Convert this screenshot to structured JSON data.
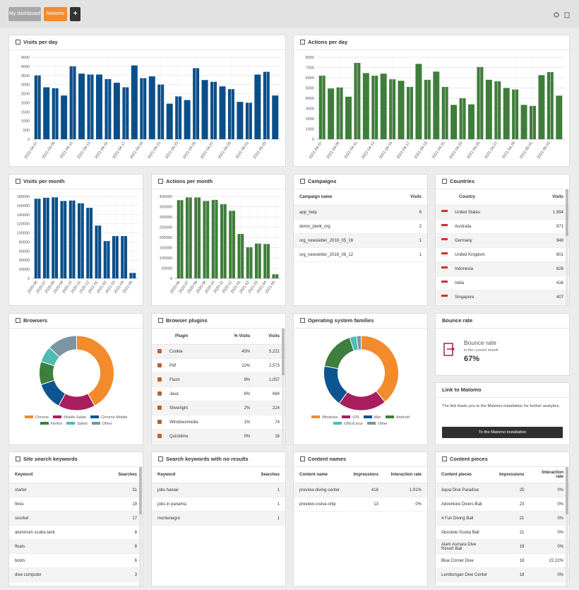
{
  "header": {
    "tabs": [
      "My dashboard",
      "Matomo"
    ],
    "add_button": "+"
  },
  "chart_data": [
    {
      "type": "bar",
      "title": "Visits per day",
      "color": "#0b4f8a",
      "categories": [
        "2021-04-07",
        null,
        "2021-04-09",
        null,
        "2021-04-11",
        null,
        "2021-04-13",
        null,
        "2021-04-15",
        null,
        "2021-04-17",
        null,
        "2021-04-19",
        null,
        "2021-04-21",
        null,
        "2021-04-23",
        null,
        "2021-04-25",
        null,
        "2021-04-27",
        null,
        "2021-04-29",
        null,
        "2021-05-01",
        null,
        "2021-05-03",
        null
      ],
      "values": [
        3500,
        2850,
        2800,
        2400,
        4000,
        3600,
        3550,
        3550,
        3300,
        3100,
        2850,
        4050,
        3350,
        3450,
        3000,
        1950,
        2350,
        2150,
        3900,
        3250,
        3150,
        2900,
        2750,
        2050,
        2000,
        3550,
        3700,
        2400
      ],
      "ylim": [
        0,
        4500
      ],
      "yticks": [
        0,
        500,
        1000,
        1500,
        2000,
        2500,
        3000,
        3500,
        4000,
        4500
      ],
      "grid": true
    },
    {
      "type": "bar",
      "title": "Actions per day",
      "color": "#3f7d3b",
      "categories": [
        "2021-04-07",
        null,
        "2021-04-09",
        null,
        "2021-04-11",
        null,
        "2021-04-13",
        null,
        "2021-04-15",
        null,
        "2021-04-17",
        null,
        "2021-04-19",
        null,
        "2021-04-21",
        null,
        "2021-04-23",
        null,
        "2021-04-25",
        null,
        "2021-04-27",
        null,
        "2021-04-29",
        null,
        "2021-05-01",
        null,
        "2021-05-03",
        null
      ],
      "values": [
        6200,
        4950,
        5050,
        4150,
        7450,
        6450,
        6200,
        6400,
        5850,
        5700,
        5100,
        7350,
        5800,
        6600,
        5100,
        3350,
        4000,
        3400,
        7050,
        5800,
        5650,
        5000,
        4850,
        3350,
        3250,
        6250,
        6550,
        4250
      ],
      "ylim": [
        0,
        8000
      ],
      "yticks": [
        0,
        1000,
        2000,
        3000,
        4000,
        5000,
        6000,
        7000,
        8000
      ],
      "grid": true
    },
    {
      "type": "bar",
      "title": "Visits per month",
      "color": "#0b4f8a",
      "categories": [
        "2020-06",
        "2020-07",
        "2020-08",
        "2020-09",
        "2020-10",
        "2020-11",
        "2020-12",
        "2021-01",
        "2021-02",
        "2021-03",
        "2021-04",
        "2021-05"
      ],
      "values": [
        175000,
        177000,
        178000,
        170000,
        171000,
        165000,
        155000,
        116000,
        82000,
        93000,
        93000,
        12000
      ],
      "ylim": [
        0,
        180000
      ],
      "yticks": [
        0,
        20000,
        40000,
        60000,
        80000,
        100000,
        120000,
        140000,
        160000,
        180000
      ],
      "grid": true
    },
    {
      "type": "bar",
      "title": "Actions per month",
      "color": "#3f7d3b",
      "categories": [
        "2020-06",
        "2020-07",
        "2020-08",
        "2020-09",
        "2020-10",
        "2020-11",
        "2020-12",
        "2021-01",
        "2021-02",
        "2021-03",
        "2021-04",
        "2021-05"
      ],
      "values": [
        382000,
        395000,
        395000,
        378000,
        383000,
        362000,
        330000,
        217000,
        152000,
        170000,
        168000,
        20000
      ],
      "ylim": [
        0,
        400000
      ],
      "yticks": [
        0,
        50000,
        100000,
        150000,
        200000,
        250000,
        300000,
        350000,
        400000
      ],
      "grid": true
    },
    {
      "type": "pie",
      "title": "Browsers",
      "categories": [
        "Chrome",
        "Mobile Safari",
        "Chrome Mobile",
        "Firefox",
        "Safari",
        "Other"
      ],
      "values": [
        42,
        16,
        12,
        10,
        7,
        13
      ],
      "colors": [
        "#f38b2d",
        "#a91e5e",
        "#0d5490",
        "#3e7f3e",
        "#4fbcb4",
        "#7d95a2"
      ]
    },
    {
      "type": "pie",
      "title": "Operating system families",
      "categories": [
        "Windows",
        "iOS",
        "Mac",
        "Android",
        "GNU/Linux",
        "Other"
      ],
      "values": [
        39,
        21,
        18,
        17,
        3,
        2
      ],
      "colors": [
        "#f38b2d",
        "#a91e5e",
        "#0d5490",
        "#3e7f3e",
        "#4fbcb4",
        "#7d95a2"
      ]
    }
  ],
  "campaigns": {
    "title": "Campaigns",
    "columns": [
      "Campaign name",
      "Visits"
    ],
    "rows": [
      [
        "app_help",
        "6"
      ],
      [
        "demo_piwik_org",
        "2"
      ],
      [
        "org_newsletter_2018_05_16",
        "1"
      ],
      [
        "org_newsletter_2018_06_12",
        "1"
      ]
    ]
  },
  "countries": {
    "title": "Countries",
    "columns": [
      "Country",
      "Visits"
    ],
    "rows": [
      [
        "United States",
        "1,994"
      ],
      [
        "Australia",
        "971"
      ],
      [
        "Germany",
        "948"
      ],
      [
        "United Kingdom",
        "801"
      ],
      [
        "Indonesia",
        "626"
      ],
      [
        "India",
        "416"
      ],
      [
        "Singapore",
        "407"
      ]
    ]
  },
  "browser_plugins": {
    "title": "Browser plugins",
    "columns": [
      "Plugin",
      "% Visits",
      "Visits"
    ],
    "rows": [
      [
        "Cookie",
        "45%",
        "5,221"
      ],
      [
        "Pdf",
        "22%",
        "2,573"
      ],
      [
        "Flash",
        "9%",
        "1,057"
      ],
      [
        "Java",
        "6%",
        "684"
      ],
      [
        "Silverlight",
        "2%",
        "224"
      ],
      [
        "Windowsmedia",
        "1%",
        "74"
      ],
      [
        "Quicktime",
        "0%",
        "16"
      ]
    ]
  },
  "bounce_rate": {
    "title": "Bounce rate",
    "label": "Bounce rate",
    "sublabel": "in the current month",
    "value": "67%"
  },
  "link": {
    "title": "Link to Matomo",
    "text": "The link leads you to the Matomo installation for further analytics.",
    "button": "To the Matomo installation"
  },
  "site_search": {
    "title": "Site search keywords",
    "columns": [
      "Keyword",
      "Searches"
    ],
    "rows": [
      [
        "starter",
        "31"
      ],
      [
        "fines",
        "19"
      ],
      [
        "snorkel",
        "17"
      ],
      [
        "aluminum scuba tank",
        "8"
      ],
      [
        "floats",
        "8"
      ],
      [
        "boots",
        "6"
      ],
      [
        "dive computer",
        "3"
      ]
    ]
  },
  "no_results": {
    "title": "Search keywords with no results",
    "columns": [
      "Keyword",
      "Searches"
    ],
    "rows": [
      [
        "jobs hawaii",
        "1"
      ],
      [
        "jobs in panama",
        "1"
      ],
      [
        "montenegro",
        "1"
      ]
    ]
  },
  "content_names": {
    "title": "Content names",
    "columns": [
      "Content name",
      "Impressions",
      "Interaction rate"
    ],
    "rows": [
      [
        "preview-diving-center",
        "418",
        "1.91%"
      ],
      [
        "preview-cruise-ship",
        "13",
        "0%"
      ]
    ]
  },
  "content_pieces": {
    "title": "Content pieces",
    "columns": [
      "Content pieces",
      "Impressions",
      "Interaction rate"
    ],
    "rows": [
      [
        "Aqua Dive Paradise",
        "25",
        "0%"
      ],
      [
        "Adventure Divers Bali",
        "23",
        "0%"
      ],
      [
        "4 Fun Diving Bali",
        "21",
        "0%"
      ],
      [
        "Absolute Scuba Bali",
        "21",
        "0%"
      ],
      [
        "Alam Asmara Dive Resort Bali",
        "19",
        "0%"
      ],
      [
        "Blue Corner Dive",
        "18",
        "22.22%"
      ],
      [
        "Lembongan Dive Center",
        "18",
        "0%"
      ]
    ]
  }
}
